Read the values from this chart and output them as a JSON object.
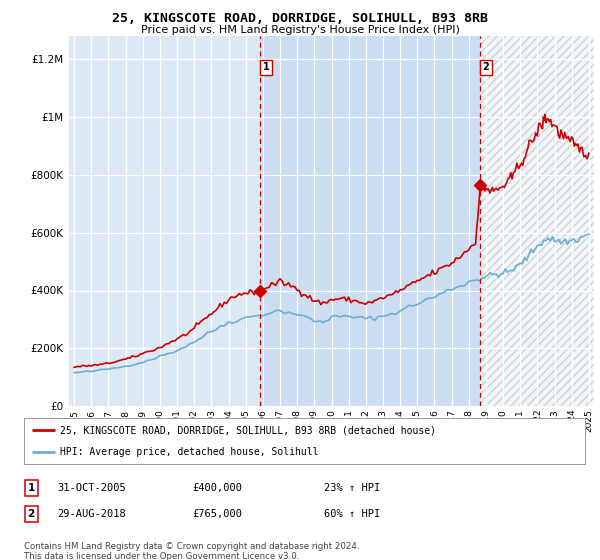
{
  "title": "25, KINGSCOTE ROAD, DORRIDGE, SOLIHULL, B93 8RB",
  "subtitle": "Price paid vs. HM Land Registry's House Price Index (HPI)",
  "bg_color": "#dce9f5",
  "ylabel_ticks": [
    "£0",
    "£200K",
    "£400K",
    "£600K",
    "£800K",
    "£1M",
    "£1.2M"
  ],
  "ytick_vals": [
    0,
    200000,
    400000,
    600000,
    800000,
    1000000,
    1200000
  ],
  "ylim": [
    0,
    1280000
  ],
  "xlim_left": 1994.7,
  "xlim_right": 2025.3,
  "marker1_x": 2005.83,
  "marker1_y": 400000,
  "marker2_x": 2018.66,
  "marker2_y": 765000,
  "vline1_x": 2005.83,
  "vline2_x": 2018.66,
  "shade_x1": 2005.83,
  "shade_x2": 2018.66,
  "legend_line1": "25, KINGSCOTE ROAD, DORRIDGE, SOLIHULL, B93 8RB (detached house)",
  "legend_line2": "HPI: Average price, detached house, Solihull",
  "annot1_date": "31-OCT-2005",
  "annot1_price": "£400,000",
  "annot1_hpi": "23% ↑ HPI",
  "annot2_date": "29-AUG-2018",
  "annot2_price": "£765,000",
  "annot2_hpi": "60% ↑ HPI",
  "footer": "Contains HM Land Registry data © Crown copyright and database right 2024.\nThis data is licensed under the Open Government Licence v3.0.",
  "red_color": "#cc0000",
  "blue_color": "#6baed6",
  "shade_color": "#c5d9ef",
  "hatch_color": "#bbbbbb"
}
